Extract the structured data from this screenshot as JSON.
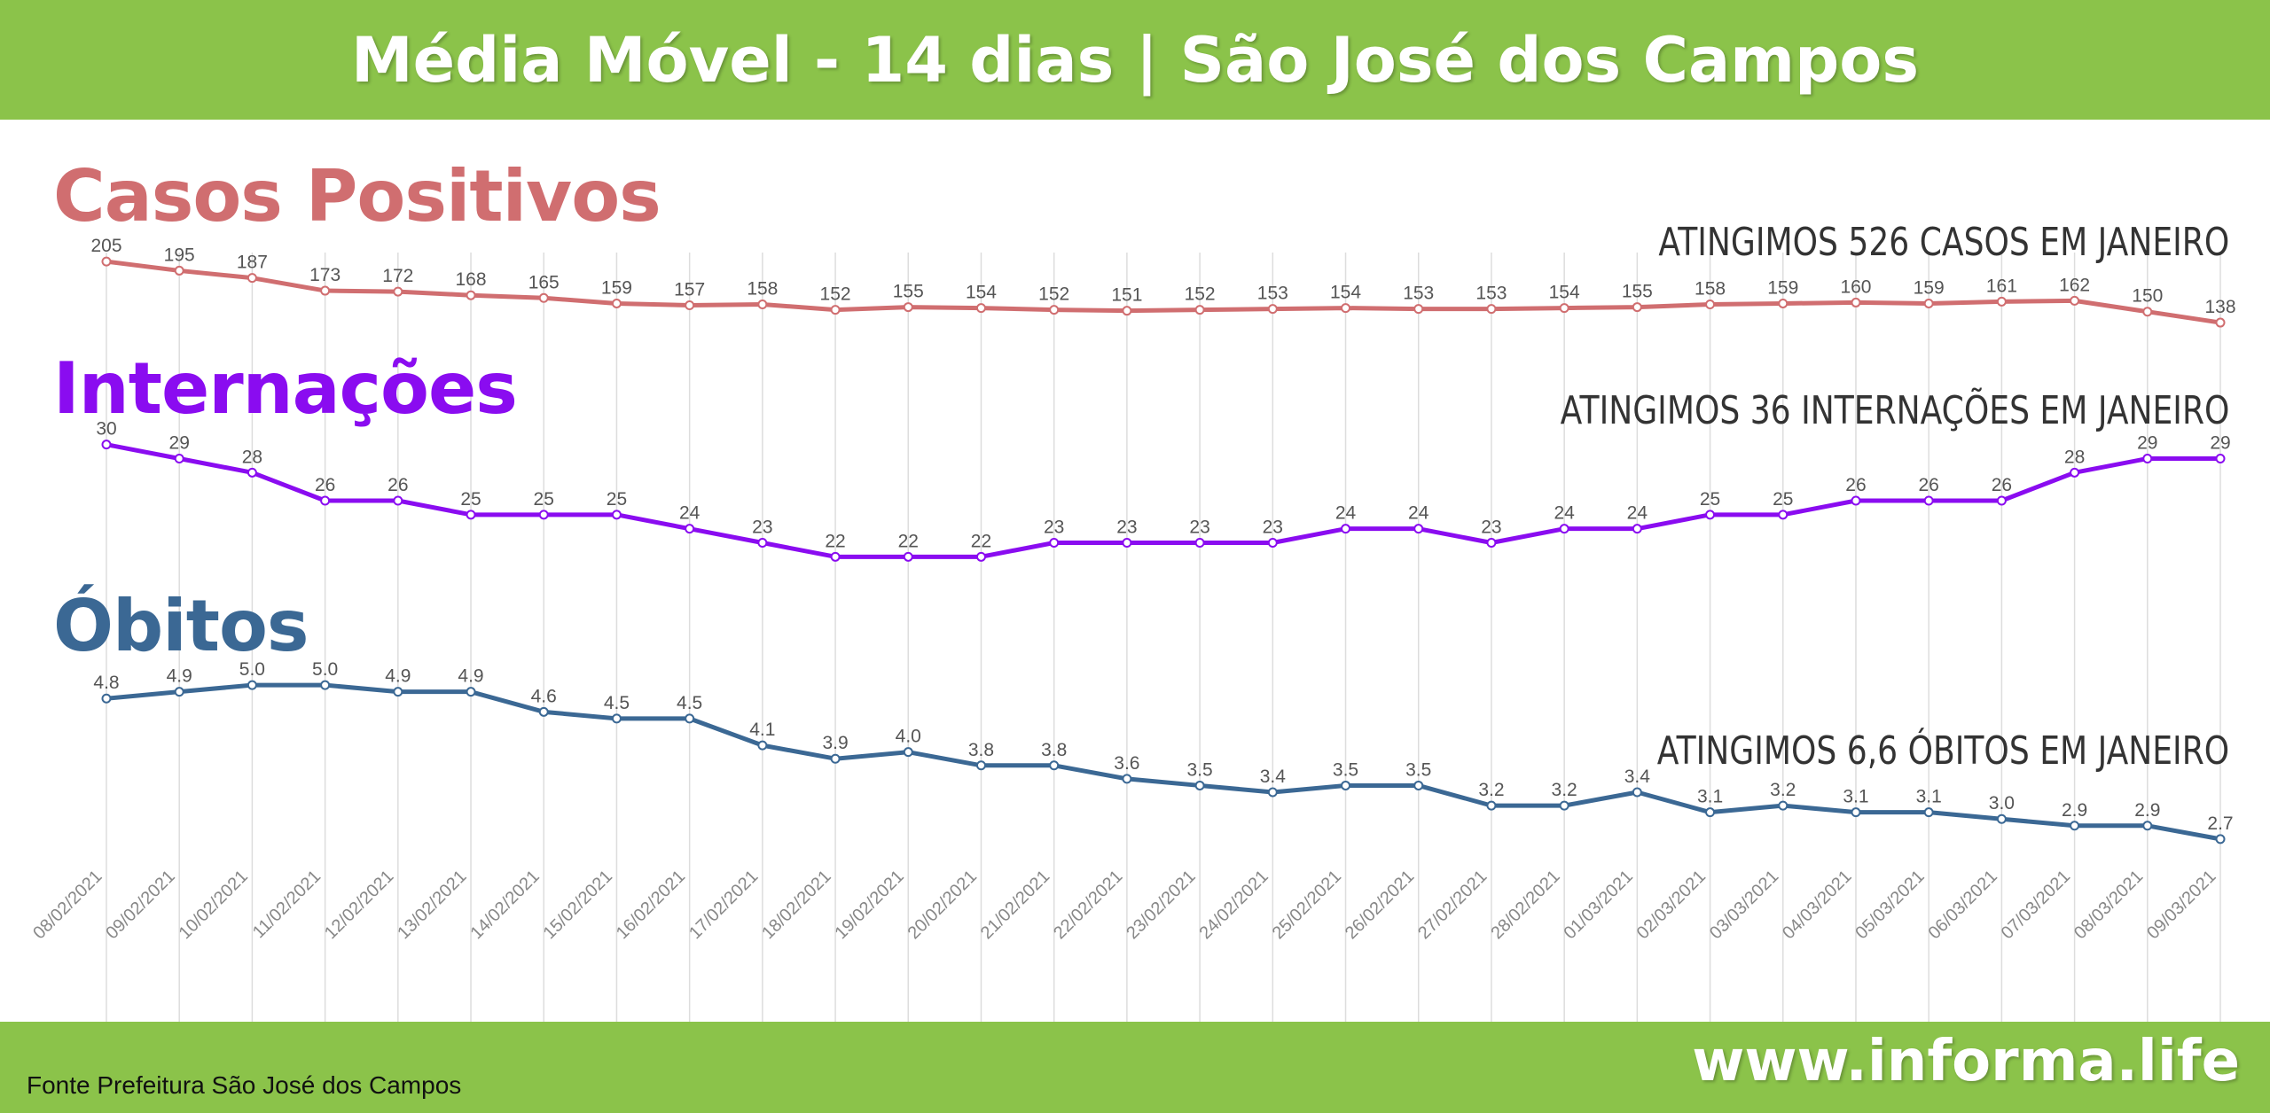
{
  "header": {
    "title": "Média Móvel - 14 dias | São José dos Campos"
  },
  "footer": {
    "source": "Fonte Prefeitura São José dos Campos",
    "site": "www.informa.life"
  },
  "colors": {
    "header_bg": "#8bc34a",
    "casos": "#d06e70",
    "internacoes": "#8a0cf0",
    "obitos": "#3b6894",
    "grid": "#dddddd"
  },
  "sections": {
    "casos": {
      "title": "Casos Positivos",
      "note": "ATINGIMOS 526 CASOS EM JANEIRO"
    },
    "internacoes": {
      "title": "Internações",
      "note": "ATINGIMOS 36 INTERNAÇÕES EM JANEIRO"
    },
    "obitos": {
      "title": "Óbitos",
      "note": "ATINGIMOS 6,6 ÓBITOS EM JANEIRO"
    }
  },
  "chart_data": {
    "type": "line",
    "title": "Média Móvel - 14 dias | São José dos Campos",
    "xlabel": "",
    "ylabel": "",
    "grid": true,
    "x": [
      "08/02/2021",
      "09/02/2021",
      "10/02/2021",
      "11/02/2021",
      "12/02/2021",
      "13/02/2021",
      "14/02/2021",
      "15/02/2021",
      "16/02/2021",
      "17/02/2021",
      "18/02/2021",
      "19/02/2021",
      "20/02/2021",
      "21/02/2021",
      "22/02/2021",
      "23/02/2021",
      "24/02/2021",
      "25/02/2021",
      "26/02/2021",
      "27/02/2021",
      "28/02/2021",
      "01/03/2021",
      "02/03/2021",
      "03/03/2021",
      "04/03/2021",
      "05/03/2021",
      "06/03/2021",
      "07/03/2021",
      "08/03/2021",
      "09/03/2021"
    ],
    "series": [
      {
        "name": "Casos Positivos",
        "color": "#d06e70",
        "values": [
          205,
          195,
          187,
          173,
          172,
          168,
          165,
          159,
          157,
          158,
          152,
          155,
          154,
          152,
          151,
          152,
          153,
          154,
          153,
          153,
          154,
          155,
          158,
          159,
          160,
          159,
          161,
          162,
          150,
          138
        ],
        "labels": [
          "205",
          "195",
          "187",
          "173",
          "172",
          "168",
          "165",
          "159",
          "157",
          "158",
          "152",
          "155",
          "154",
          "152",
          "151",
          "152",
          "153",
          "154",
          "153",
          "153",
          "154",
          "155",
          "158",
          "159",
          "160",
          "159",
          "161",
          "162",
          "150",
          "138"
        ]
      },
      {
        "name": "Internações",
        "color": "#8a0cf0",
        "values": [
          30,
          29,
          28,
          26,
          26,
          25,
          25,
          25,
          24,
          23,
          22,
          22,
          22,
          23,
          23,
          23,
          23,
          24,
          24,
          23,
          24,
          24,
          25,
          25,
          26,
          26,
          26,
          28,
          29,
          29
        ],
        "labels": [
          "30",
          "29",
          "28",
          "26",
          "26",
          "25",
          "25",
          "25",
          "24",
          "23",
          "22",
          "22",
          "22",
          "23",
          "23",
          "23",
          "23",
          "24",
          "24",
          "23",
          "24",
          "24",
          "25",
          "25",
          "26",
          "26",
          "26",
          "28",
          "29",
          "29"
        ]
      },
      {
        "name": "Óbitos",
        "color": "#3b6894",
        "values": [
          4.8,
          4.9,
          5.0,
          5.0,
          4.9,
          4.9,
          4.6,
          4.5,
          4.5,
          4.1,
          3.9,
          4.0,
          3.8,
          3.8,
          3.6,
          3.5,
          3.4,
          3.5,
          3.5,
          3.2,
          3.2,
          3.4,
          3.1,
          3.2,
          3.1,
          3.1,
          3.0,
          2.9,
          2.9,
          2.7
        ],
        "labels": [
          "4.8",
          "4.9",
          "5.0",
          "5.0",
          "4.9",
          "4.9",
          "4.6",
          "4.5",
          "4.5",
          "4.1",
          "3.9",
          "4.0",
          "3.8",
          "3.8",
          "3.6",
          "3.5",
          "3.4",
          "3.5",
          "3.5",
          "3.2",
          "3.2",
          "3.4",
          "3.1",
          "3.2",
          "3.1",
          "3.1",
          "3.0",
          "2.9",
          "2.9",
          "2.7"
        ]
      }
    ]
  }
}
